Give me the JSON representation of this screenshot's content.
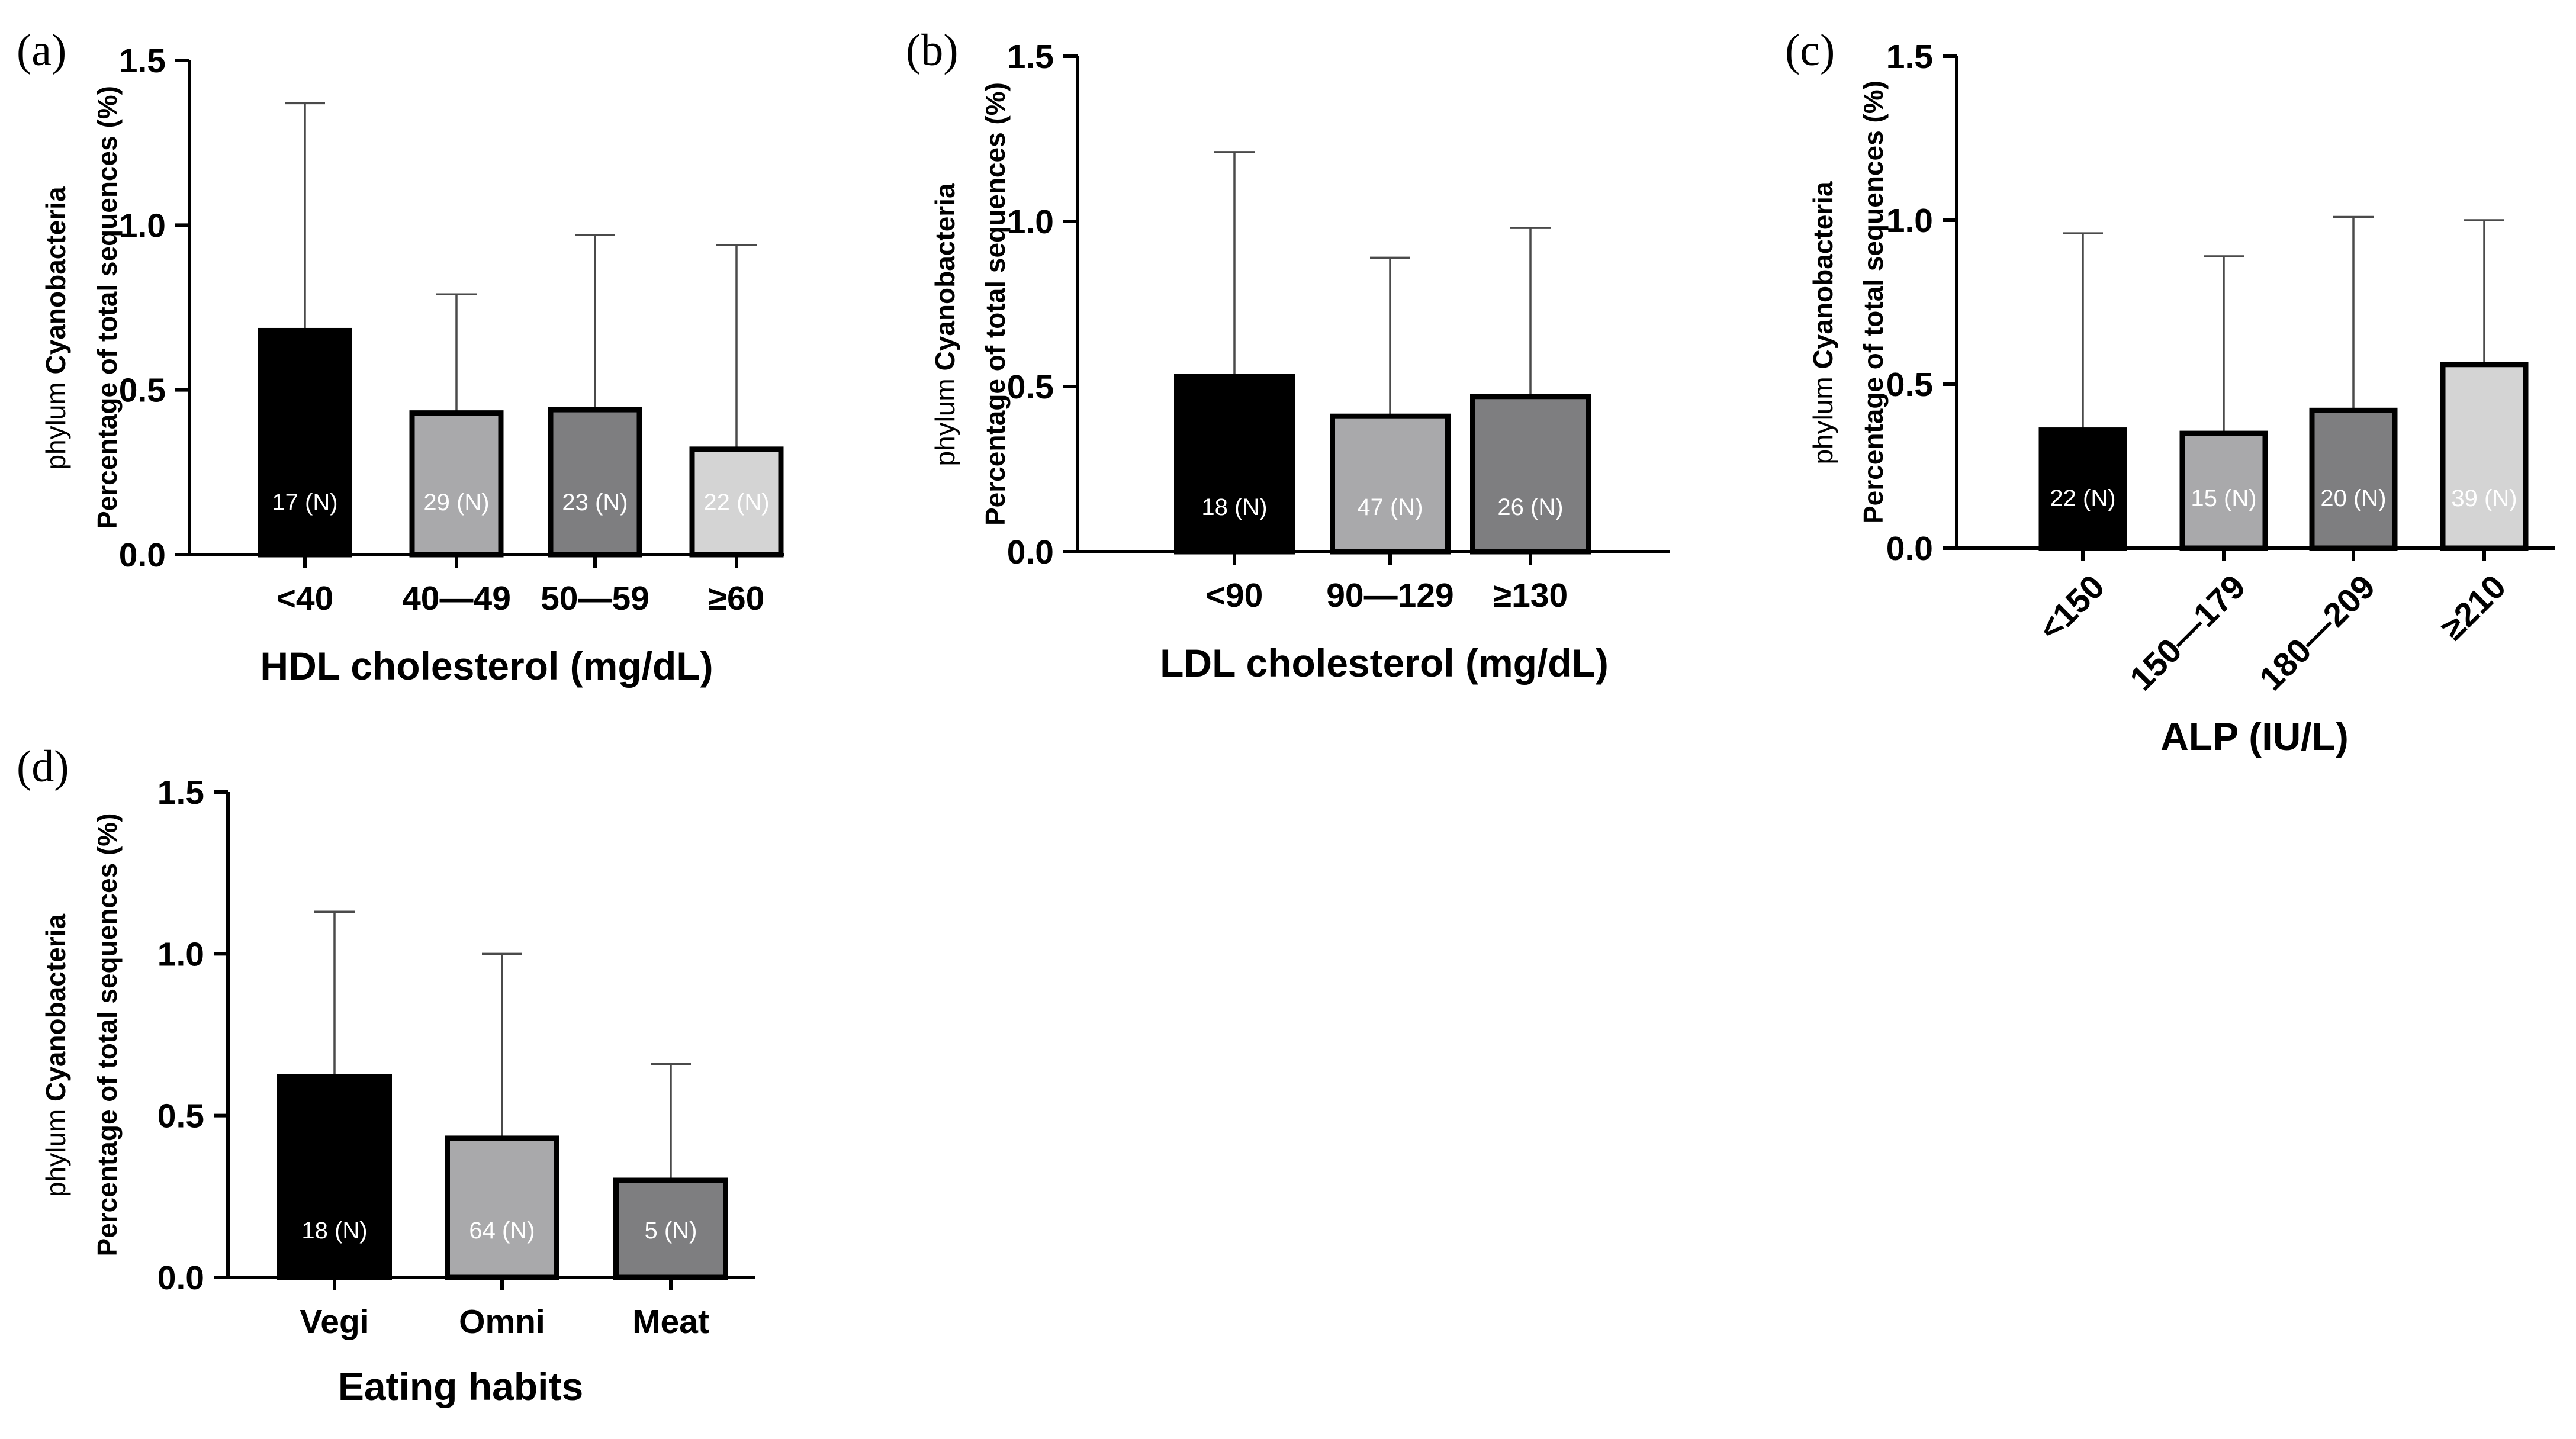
{
  "chart_data": [
    {
      "panel": "(a)",
      "type": "bar",
      "ylabel_prefix": "phylum",
      "ylabel_taxon": "Cyanobacteria",
      "ylabel_line2": "Percentage of total sequences (%)",
      "xlabel": "HDL cholesterol (mg/dL)",
      "ylim": [
        0,
        1.5
      ],
      "yticks": [
        "0.0",
        "0.5",
        "1.0",
        "1.5"
      ],
      "categories": [
        "<40",
        "40—49",
        "50—59",
        "≥60"
      ],
      "values": [
        0.68,
        0.43,
        0.44,
        0.32
      ],
      "error_upper": [
        1.37,
        0.79,
        0.97,
        0.94
      ],
      "n_labels": [
        "17 (N)",
        "29 (N)",
        "23 (N)",
        "22 (N)"
      ],
      "colors": [
        "#000000",
        "#a9a9ab",
        "#7e7e80",
        "#d4d4d4"
      ],
      "rotated_ticks": false
    },
    {
      "panel": "(b)",
      "type": "bar",
      "ylabel_prefix": "phylum",
      "ylabel_taxon": "Cyanobacteria",
      "ylabel_line2": "Percentage of total sequences (%)",
      "xlabel": "LDL cholesterol (mg/dL)",
      "ylim": [
        0,
        1.5
      ],
      "yticks": [
        "0.0",
        "0.5",
        "1.0",
        "1.5"
      ],
      "categories": [
        "<90",
        "90—129",
        "≥130"
      ],
      "values": [
        0.53,
        0.41,
        0.47
      ],
      "error_upper": [
        1.21,
        0.89,
        0.98
      ],
      "n_labels": [
        "18 (N)",
        "47 (N)",
        "26 (N)"
      ],
      "colors": [
        "#000000",
        "#a9a9ab",
        "#7e7e80"
      ],
      "rotated_ticks": false
    },
    {
      "panel": "(c)",
      "type": "bar",
      "ylabel_prefix": "phylum",
      "ylabel_taxon": "Cyanobacteria",
      "ylabel_line2": "Percentage of total sequences (%)",
      "xlabel": "ALP (IU/L)",
      "ylim": [
        0,
        1.5
      ],
      "yticks": [
        "0.0",
        "0.5",
        "1.0",
        "1.5"
      ],
      "categories": [
        "<150",
        "150—179",
        "180—209",
        "≥210"
      ],
      "values": [
        0.36,
        0.35,
        0.42,
        0.56
      ],
      "error_upper": [
        0.96,
        0.89,
        1.01,
        1.0
      ],
      "n_labels": [
        "22 (N)",
        "15 (N)",
        "20 (N)",
        "39 (N)"
      ],
      "colors": [
        "#000000",
        "#a9a9ab",
        "#7e7e80",
        "#d4d4d4"
      ],
      "rotated_ticks": true
    },
    {
      "panel": "(d)",
      "type": "bar",
      "ylabel_prefix": "phylum",
      "ylabel_taxon": "Cyanobacteria",
      "ylabel_line2": "Percentage of total sequences (%)",
      "xlabel": "Eating habits",
      "ylim": [
        0,
        1.5
      ],
      "yticks": [
        "0.0",
        "0.5",
        "1.0",
        "1.5"
      ],
      "categories": [
        "Vegi",
        "Omni",
        "Meat"
      ],
      "values": [
        0.62,
        0.43,
        0.3
      ],
      "error_upper": [
        1.13,
        1.0,
        0.66
      ],
      "n_labels": [
        "18 (N)",
        "64 (N)",
        "5 (N)"
      ],
      "colors": [
        "#000000",
        "#a9a9ab",
        "#7e7e80"
      ],
      "rotated_ticks": false
    }
  ]
}
